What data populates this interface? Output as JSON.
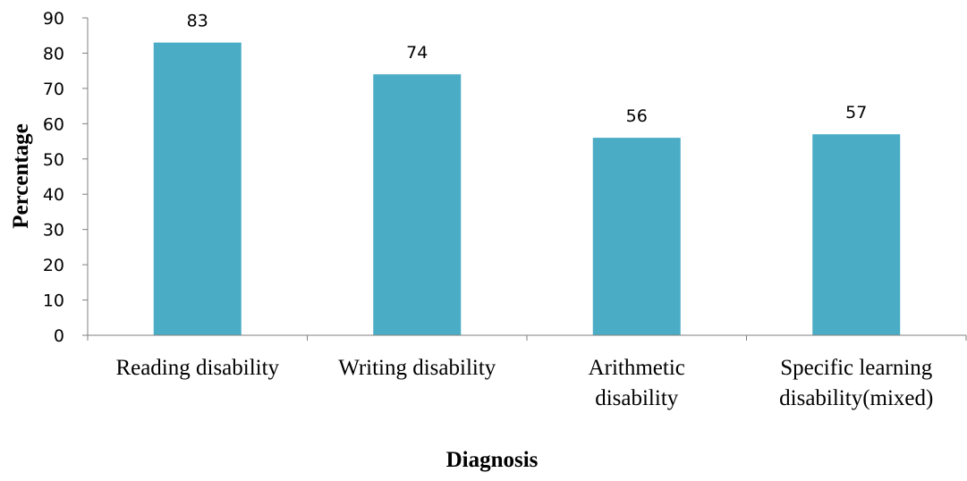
{
  "chart_data": {
    "type": "bar",
    "title": "",
    "xlabel": "Diagnosis",
    "ylabel": "Percentage",
    "categories": [
      [
        "Reading disability"
      ],
      [
        "Writing disability"
      ],
      [
        "Arithmetic",
        "disability"
      ],
      [
        "Specific learning",
        "disability(mixed)"
      ]
    ],
    "series": [
      {
        "values": [
          83,
          74,
          56,
          57
        ],
        "color": "#4BACC6"
      }
    ],
    "data_labels": [
      "83",
      "74",
      "56",
      "57"
    ],
    "y_ticks": [
      "0",
      "10",
      "20",
      "30",
      "40",
      "50",
      "60",
      "70",
      "80",
      "90"
    ],
    "ylim": [
      0,
      90
    ],
    "grid": false,
    "legend": "none"
  }
}
